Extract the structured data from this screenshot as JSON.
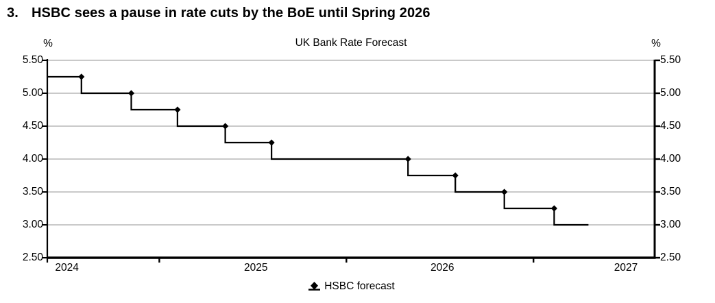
{
  "header": {
    "number": "3.",
    "title": "HSBC sees a pause in rate cuts by the BoE until Spring 2026"
  },
  "chart_data": {
    "type": "line",
    "line_style": "step",
    "title": "UK Bank Rate Forecast",
    "grid": "horizontal-only",
    "y_axis": {
      "unit": "%",
      "min": 2.5,
      "max": 5.5,
      "tick_step": 0.5,
      "tick_labels": [
        "5.50",
        "5.00",
        "4.50",
        "4.00",
        "3.50",
        "3.00",
        "2.50"
      ],
      "shown_on": "both-sides"
    },
    "x_axis": {
      "range": [
        2024.401,
        2027.648
      ],
      "tick_marks": [
        2025,
        2026,
        2027
      ],
      "labels": [
        {
          "text": "2024",
          "pos": 2024.506
        },
        {
          "text": "2025",
          "pos": 2025.516
        },
        {
          "text": "2026",
          "pos": 2026.513
        },
        {
          "text": "2027",
          "pos": 2027.494
        }
      ]
    },
    "legend": {
      "position": "bottom-center",
      "entries": [
        {
          "label": "HSBC forecast",
          "marker": "black-diamond-on-line"
        }
      ]
    },
    "series": [
      {
        "name": "HSBC forecast",
        "color": "#000000",
        "marker": "diamond",
        "markers_at_step_ends": true,
        "start": "2024-05-26",
        "steps": [
          {
            "until": "2024-08-01",
            "rate": 5.25
          },
          {
            "until": "2024-11-07",
            "rate": 5.0
          },
          {
            "until": "2025-02-06",
            "rate": 4.75
          },
          {
            "until": "2025-05-08",
            "rate": 4.5
          },
          {
            "until": "2025-08-07",
            "rate": 4.25
          },
          {
            "until": "2026-04-30",
            "rate": 4.0
          },
          {
            "until": "2026-07-31",
            "rate": 3.75
          },
          {
            "until": "2026-11-05",
            "rate": 3.5
          },
          {
            "until": "2027-02-11",
            "rate": 3.25
          },
          {
            "until": "2027-04-17",
            "rate": 3.0
          }
        ]
      }
    ],
    "colors": {
      "line": "#000000",
      "grid": "#c9c9c9",
      "axis": "#000000",
      "background": "#ffffff",
      "text": "#000000"
    }
  }
}
